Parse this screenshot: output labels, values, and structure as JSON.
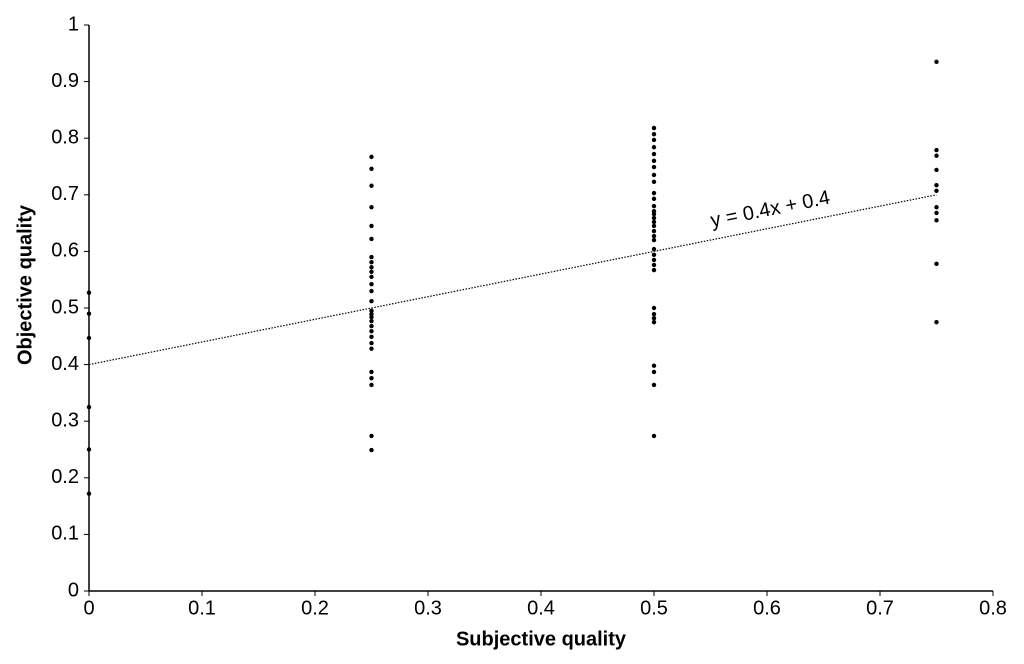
{
  "chart_data": {
    "type": "scatter",
    "xlabel": "Subjective quality",
    "ylabel": "Objective quality",
    "x": [
      0,
      0,
      0,
      0,
      0,
      0,
      0.25,
      0.25,
      0.25,
      0.25,
      0.25,
      0.25,
      0.25,
      0.25,
      0.25,
      0.25,
      0.25,
      0.25,
      0.25,
      0.25,
      0.25,
      0.25,
      0.25,
      0.25,
      0.25,
      0.25,
      0.25,
      0.25,
      0.25,
      0.25,
      0.25,
      0.25,
      0.25,
      0.25,
      0.5,
      0.5,
      0.5,
      0.5,
      0.5,
      0.5,
      0.5,
      0.5,
      0.5,
      0.5,
      0.5,
      0.5,
      0.5,
      0.5,
      0.5,
      0.5,
      0.5,
      0.5,
      0.5,
      0.5,
      0.5,
      0.5,
      0.5,
      0.5,
      0.5,
      0.5,
      0.5,
      0.5,
      0.5,
      0.5,
      0.5,
      0.5,
      0.5,
      0.75,
      0.75,
      0.75,
      0.75,
      0.75,
      0.75,
      0.75,
      0.75,
      0.75,
      0.75,
      0.75
    ],
    "y": [
      0.527,
      0.49,
      0.447,
      0.325,
      0.25,
      0.172,
      0.767,
      0.746,
      0.716,
      0.678,
      0.645,
      0.622,
      0.59,
      0.581,
      0.572,
      0.564,
      0.555,
      0.542,
      0.53,
      0.512,
      0.495,
      0.489,
      0.484,
      0.477,
      0.468,
      0.459,
      0.449,
      0.438,
      0.428,
      0.387,
      0.376,
      0.364,
      0.274,
      0.249,
      0.818,
      0.807,
      0.797,
      0.784,
      0.772,
      0.76,
      0.749,
      0.735,
      0.723,
      0.703,
      0.693,
      0.68,
      0.671,
      0.666,
      0.659,
      0.652,
      0.645,
      0.636,
      0.627,
      0.62,
      0.604,
      0.594,
      0.585,
      0.576,
      0.567,
      0.5,
      0.489,
      0.482,
      0.475,
      0.398,
      0.387,
      0.364,
      0.274,
      0.935,
      0.779,
      0.769,
      0.744,
      0.717,
      0.707,
      0.678,
      0.668,
      0.655,
      0.578,
      0.475
    ],
    "color": "#000000",
    "trendline": {
      "slope": 0.4,
      "intercept": 0.4,
      "label": "y = 0.4x + 0.4"
    },
    "xlim": [
      0,
      0.8
    ],
    "xticks": [
      0,
      0.1,
      0.2,
      0.3,
      0.4,
      0.5,
      0.6,
      0.7,
      0.8
    ],
    "ylim": [
      0,
      1
    ],
    "yticks": [
      0,
      0.1,
      0.2,
      0.3,
      0.4,
      0.5,
      0.6,
      0.7,
      0.8,
      0.9,
      1
    ],
    "grid": false
  }
}
